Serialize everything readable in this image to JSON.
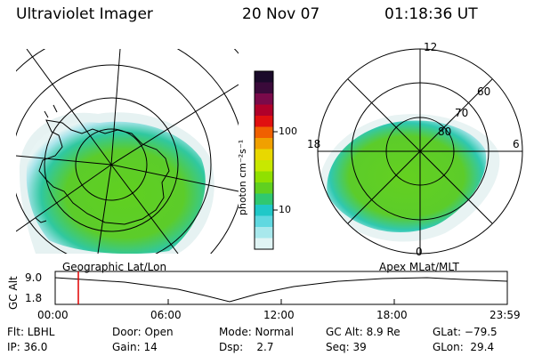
{
  "header": {
    "title": "Ultraviolet Imager",
    "date": "20 Nov 07",
    "time": "01:18:36 UT"
  },
  "left_panel": {
    "label": "Geographic Lat/Lon"
  },
  "right_panel": {
    "label": "Apex MLat/MLT",
    "mlt_labels": [
      "12",
      "18",
      "6",
      "0"
    ],
    "mlat_labels": [
      "60",
      "70",
      "80"
    ]
  },
  "colorbar": {
    "unit_label": "photon cm⁻²s⁻¹",
    "ticks": [
      "100",
      "10"
    ],
    "colors": [
      "#1a0a2a",
      "#3a0a3a",
      "#7a0a4a",
      "#b0002a",
      "#e01010",
      "#f06000",
      "#f0a000",
      "#e8d800",
      "#c8e800",
      "#90e000",
      "#60d020",
      "#30c870",
      "#20c8c8",
      "#60d8e0",
      "#a8e8ec",
      "#e0f4f4"
    ]
  },
  "altitude_plot": {
    "ylabel": "GC Alt",
    "yticks": [
      "9.0",
      "1.8"
    ],
    "xticks": [
      "00:00",
      "06:00",
      "12:00",
      "18:00",
      "23:59"
    ],
    "marker_color": "#e00000"
  },
  "info": {
    "flt": "Flt: LBHL",
    "door": "Door: Open",
    "mode": "Mode: Normal",
    "gcalt": "GC Alt: 8.9 Re",
    "glat": "GLat: −79.5",
    "ip": "IP: 36.0",
    "gain": "Gain: 14",
    "dsp": "Dsp:    2.7",
    "seq": "Seq: 39",
    "glon": "GLon:  29.4"
  }
}
